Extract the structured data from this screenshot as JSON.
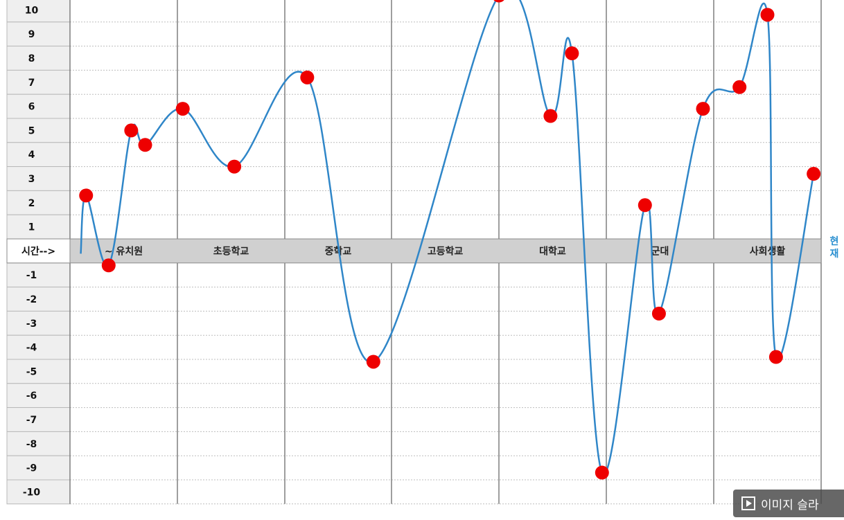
{
  "chart_data": {
    "type": "line",
    "y_ticks": [
      10,
      9,
      8,
      7,
      6,
      5,
      4,
      3,
      2,
      1,
      -1,
      -2,
      -3,
      -4,
      -5,
      -6,
      -7,
      -8,
      -9,
      -10
    ],
    "ylim": [
      -10,
      10
    ],
    "axis_label": "시간-->",
    "periods": [
      "~ 유치원",
      "초등학교",
      "중학교",
      "고등학교",
      "대학교",
      "군대",
      "사회생활"
    ],
    "end_label": "현재",
    "grid": true,
    "series": [
      {
        "values": [
          {
            "period": 0,
            "offset": 0.15,
            "y": 2.3
          },
          {
            "period": 0,
            "offset": 0.36,
            "y": -0.6
          },
          {
            "period": 0,
            "offset": 0.57,
            "y": 5.0
          },
          {
            "period": 0,
            "offset": 0.7,
            "y": 4.4
          },
          {
            "period": 1,
            "offset": 0.05,
            "y": 5.9
          },
          {
            "period": 1,
            "offset": 0.53,
            "y": 3.5
          },
          {
            "period": 2,
            "offset": 0.21,
            "y": 7.2
          },
          {
            "period": 2,
            "offset": 0.83,
            "y": -4.6
          },
          {
            "period": 4,
            "offset": 0.0,
            "y": 10.6
          },
          {
            "period": 4,
            "offset": 0.48,
            "y": 5.6
          },
          {
            "period": 4,
            "offset": 0.68,
            "y": 8.2
          },
          {
            "period": 4,
            "offset": 0.96,
            "y": -9.2
          },
          {
            "period": 5,
            "offset": 0.36,
            "y": 1.9
          },
          {
            "period": 5,
            "offset": 0.49,
            "y": -2.6
          },
          {
            "period": 5,
            "offset": 0.9,
            "y": 5.9
          },
          {
            "period": 6,
            "offset": 0.24,
            "y": 6.8
          },
          {
            "period": 6,
            "offset": 0.5,
            "y": 9.8
          },
          {
            "period": 6,
            "offset": 0.58,
            "y": -4.4
          },
          {
            "period": 6,
            "offset": 0.93,
            "y": 3.2
          }
        ]
      }
    ]
  },
  "colors": {
    "line": "#2f86c8",
    "points": "#ee0000",
    "axis_band": "#d0d0d0",
    "label_bg": "#efefef",
    "now_label": "#2a8fd0"
  },
  "overlay": {
    "icon": "image-slide-icon",
    "text": "이미지 슬라"
  }
}
